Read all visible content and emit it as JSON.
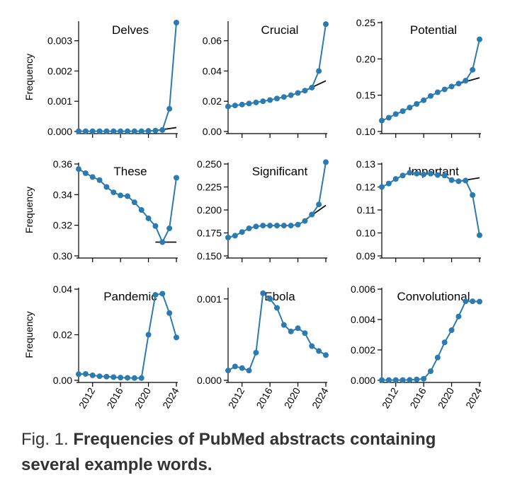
{
  "colors": {
    "series": "#2c7bb0",
    "trend": "#111111",
    "axis": "#000000",
    "caption": "#333333"
  },
  "caption": {
    "label": "Fig. 1.",
    "text": "Frequencies of PubMed abstracts containing several example words."
  },
  "shared_xlabel_ticks": [
    "2012",
    "2016",
    "2020",
    "2024"
  ],
  "chart_data": [
    {
      "type": "line",
      "title": "Delves",
      "ylabel": "Frequency",
      "xlim": [
        2010,
        2024
      ],
      "ylim": [
        0,
        0.0036
      ],
      "yticks": [
        0,
        0.001,
        0.002,
        0.003
      ],
      "ytick_labels": [
        "0.000",
        "0.001",
        "0.002",
        "0.003"
      ],
      "x": [
        2010,
        2011,
        2012,
        2013,
        2014,
        2015,
        2016,
        2017,
        2018,
        2019,
        2020,
        2021,
        2022,
        2023,
        2024
      ],
      "values": [
        1e-05,
        1e-05,
        1e-05,
        1e-05,
        1e-05,
        1e-05,
        1e-05,
        1e-05,
        1e-05,
        1e-05,
        2e-05,
        3e-05,
        5e-05,
        0.00075,
        0.0036
      ],
      "trend": {
        "x": [
          2021,
          2024
        ],
        "y": [
          3e-05,
          0.00013
        ]
      }
    },
    {
      "type": "line",
      "title": "Crucial",
      "ylabel": "",
      "xlim": [
        2010,
        2024
      ],
      "ylim": [
        0,
        0.072
      ],
      "yticks": [
        0,
        0.02,
        0.04,
        0.06
      ],
      "ytick_labels": [
        "0.00",
        "0.02",
        "0.04",
        "0.06"
      ],
      "x": [
        2010,
        2011,
        2012,
        2013,
        2014,
        2015,
        2016,
        2017,
        2018,
        2019,
        2020,
        2021,
        2022,
        2023,
        2024
      ],
      "values": [
        0.0165,
        0.0172,
        0.0178,
        0.0185,
        0.0192,
        0.02,
        0.0208,
        0.0218,
        0.0228,
        0.024,
        0.0255,
        0.027,
        0.029,
        0.04,
        0.071
      ],
      "trend": {
        "x": [
          2021,
          2024
        ],
        "y": [
          0.027,
          0.0335
        ]
      }
    },
    {
      "type": "line",
      "title": "Potential",
      "ylabel": "",
      "xlim": [
        2010,
        2024
      ],
      "ylim": [
        0.1,
        0.25
      ],
      "yticks": [
        0.1,
        0.15,
        0.2,
        0.25
      ],
      "ytick_labels": [
        "0.10",
        "0.15",
        "0.20",
        "0.25"
      ],
      "x": [
        2010,
        2011,
        2012,
        2013,
        2014,
        2015,
        2016,
        2017,
        2018,
        2019,
        2020,
        2021,
        2022,
        2023,
        2024
      ],
      "values": [
        0.115,
        0.119,
        0.124,
        0.128,
        0.133,
        0.138,
        0.143,
        0.149,
        0.154,
        0.158,
        0.162,
        0.166,
        0.17,
        0.185,
        0.227
      ],
      "trend": {
        "x": [
          2021,
          2024
        ],
        "y": [
          0.166,
          0.174
        ]
      }
    },
    {
      "type": "line",
      "title": "These",
      "ylabel": "Frequency",
      "xlim": [
        2010,
        2024
      ],
      "ylim": [
        0.3,
        0.36
      ],
      "yticks": [
        0.3,
        0.32,
        0.34,
        0.36
      ],
      "ytick_labels": [
        "0.30",
        "0.32",
        "0.34",
        "0.36"
      ],
      "x": [
        2010,
        2011,
        2012,
        2013,
        2014,
        2015,
        2016,
        2017,
        2018,
        2019,
        2020,
        2021,
        2022,
        2023,
        2024
      ],
      "values": [
        0.3567,
        0.354,
        0.3515,
        0.3495,
        0.345,
        0.3415,
        0.3395,
        0.339,
        0.335,
        0.33,
        0.3245,
        0.3195,
        0.309,
        0.318,
        0.351
      ],
      "trend": {
        "x": [
          2021,
          2024
        ],
        "y": [
          0.309,
          0.309
        ]
      }
    },
    {
      "type": "line",
      "title": "Significant",
      "ylabel": "",
      "xlim": [
        2010,
        2024
      ],
      "ylim": [
        0.15,
        0.25
      ],
      "yticks": [
        0.15,
        0.175,
        0.2,
        0.225,
        0.25
      ],
      "ytick_labels": [
        "0.150",
        "0.175",
        "0.200",
        "0.225",
        "0.250"
      ],
      "x": [
        2010,
        2011,
        2012,
        2013,
        2014,
        2015,
        2016,
        2017,
        2018,
        2019,
        2020,
        2021,
        2022,
        2023,
        2024
      ],
      "values": [
        0.17,
        0.172,
        0.176,
        0.18,
        0.182,
        0.183,
        0.183,
        0.183,
        0.183,
        0.183,
        0.184,
        0.188,
        0.195,
        0.206,
        0.252
      ],
      "trend": {
        "x": [
          2021,
          2024
        ],
        "y": [
          0.189,
          0.205
        ]
      }
    },
    {
      "type": "line",
      "title": "Important",
      "ylabel": "",
      "xlim": [
        2010,
        2024
      ],
      "ylim": [
        0.09,
        0.13
      ],
      "yticks": [
        0.09,
        0.1,
        0.11,
        0.12,
        0.13
      ],
      "ytick_labels": [
        "0.09",
        "0.10",
        "0.11",
        "0.12",
        "0.13"
      ],
      "x": [
        2010,
        2011,
        2012,
        2013,
        2014,
        2015,
        2016,
        2017,
        2018,
        2019,
        2020,
        2021,
        2022,
        2023,
        2024
      ],
      "values": [
        0.12,
        0.1215,
        0.1235,
        0.125,
        0.1262,
        0.1258,
        0.1255,
        0.1258,
        0.1252,
        0.125,
        0.123,
        0.1225,
        0.1228,
        0.1165,
        0.099
      ],
      "trend": {
        "x": [
          2021,
          2024
        ],
        "y": [
          0.1225,
          0.124
        ]
      }
    },
    {
      "type": "line",
      "title": "Pandemic",
      "ylabel": "Frequency",
      "xlim": [
        2010,
        2024
      ],
      "ylim": [
        0,
        0.04
      ],
      "yticks": [
        0,
        0.02,
        0.04
      ],
      "ytick_labels": [
        "0.00",
        "0.02",
        "0.04"
      ],
      "x": [
        2010,
        2011,
        2012,
        2013,
        2014,
        2015,
        2016,
        2017,
        2018,
        2019,
        2020,
        2021,
        2022,
        2023,
        2024
      ],
      "values": [
        0.0027,
        0.0028,
        0.0022,
        0.0018,
        0.0016,
        0.0014,
        0.0012,
        0.0011,
        0.001,
        0.001,
        0.02,
        0.0375,
        0.038,
        0.0295,
        0.0188
      ],
      "trend": null
    },
    {
      "type": "line",
      "title": "Ebola",
      "ylabel": "",
      "xlim": [
        2010,
        2024
      ],
      "ylim": [
        0,
        0.00112
      ],
      "yticks": [
        0,
        0.001
      ],
      "ytick_labels": [
        "0.000",
        "0.001"
      ],
      "x": [
        2010,
        2011,
        2012,
        2013,
        2014,
        2015,
        2016,
        2017,
        2018,
        2019,
        2020,
        2021,
        2022,
        2023,
        2024
      ],
      "values": [
        0.00012,
        0.00017,
        0.00015,
        0.00012,
        0.00034,
        0.00107,
        0.001,
        0.00089,
        0.00068,
        0.0006,
        0.00064,
        0.00058,
        0.00042,
        0.00036,
        0.00031
      ],
      "trend": null
    },
    {
      "type": "line",
      "title": "Convolutional",
      "ylabel": "",
      "xlim": [
        2010,
        2024
      ],
      "ylim": [
        0,
        0.006
      ],
      "yticks": [
        0,
        0.002,
        0.004,
        0.006
      ],
      "ytick_labels": [
        "0.000",
        "0.002",
        "0.004",
        "0.006"
      ],
      "x": [
        2010,
        2011,
        2012,
        2013,
        2014,
        2015,
        2016,
        2017,
        2018,
        2019,
        2020,
        2021,
        2022,
        2023,
        2024
      ],
      "values": [
        2e-05,
        2e-05,
        2e-05,
        2e-05,
        3e-05,
        6e-05,
        0.0001,
        0.0006,
        0.0015,
        0.0025,
        0.0033,
        0.0042,
        0.0052,
        0.0052,
        0.00518
      ],
      "trend": null
    }
  ]
}
